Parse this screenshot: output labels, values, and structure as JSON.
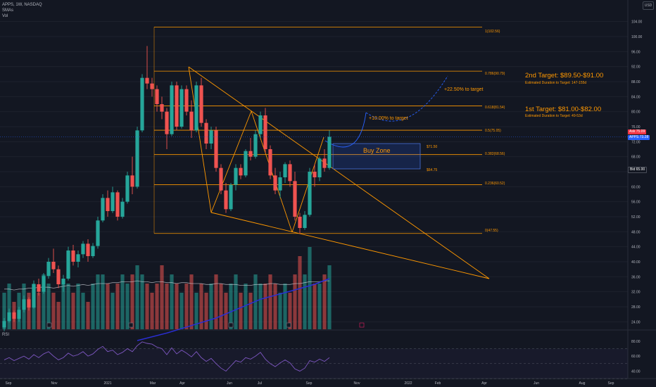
{
  "symbol": {
    "title": "APPS, 1W, NASDAQ",
    "indicators": [
      "SMAs",
      "Vol"
    ],
    "rsi_label": "RSI",
    "currency": "USD"
  },
  "annotations": {
    "target2": "2nd Target: $89.50-$91.00",
    "target2_duration": "Estimated Duration to Target: 147-155d",
    "target1": "1st Target: $81.00-$82.00",
    "target1_duration": "Estimated Duration to Target: 49-53d",
    "pct22": "+22.50% to target",
    "pct10": "+10.00% to target",
    "buy_zone": "Buy Zone",
    "zone_top": "$71.50",
    "zone_bottom": "$64.75"
  },
  "price_tags": [
    {
      "label": "Ask",
      "value": "75.09",
      "color": "#f23645"
    },
    {
      "label": "APPS",
      "value": "73.28",
      "color": "#2962ff"
    },
    {
      "label": "Bid",
      "value": "65.00",
      "color": "#131722"
    }
  ],
  "colors": {
    "up": "#26a69a",
    "down": "#ef5350",
    "fib": "#ff9800",
    "sma": "#2a2ed6",
    "rsi": "#7e57c2",
    "background": "#131722"
  },
  "chart_data": {
    "type": "candlestick",
    "x_axis_labels": [
      "Sep",
      "Nov",
      "2021",
      "Mar",
      "Apr",
      "Jun",
      "Jul",
      "Sep",
      "Nov",
      "2022",
      "Feb",
      "Apr",
      "Jun",
      "Aug",
      "Sep"
    ],
    "y_axis_labels": [
      "24.00",
      "28.00",
      "32.00",
      "36.00",
      "40.00",
      "44.00",
      "48.00",
      "52.00",
      "56.00",
      "60.00",
      "64.00",
      "68.00",
      "72.00",
      "76.00",
      "80.00",
      "84.00",
      "88.00",
      "92.00",
      "96.00",
      "100.00",
      "104.00"
    ],
    "ylim": [
      22,
      106
    ],
    "ohlc": [
      [
        22.5,
        25.0,
        21.5,
        24.2
      ],
      [
        24.2,
        27.5,
        23.8,
        26.5
      ],
      [
        26.5,
        27.0,
        24.0,
        24.8
      ],
      [
        24.8,
        28.0,
        24.0,
        27.2
      ],
      [
        27.2,
        31.0,
        26.5,
        30.0
      ],
      [
        30.0,
        30.5,
        27.0,
        27.8
      ],
      [
        27.8,
        35.0,
        27.5,
        34.0
      ],
      [
        34.0,
        35.5,
        31.0,
        32.0
      ],
      [
        32.0,
        37.0,
        31.5,
        36.2
      ],
      [
        36.2,
        41.0,
        35.5,
        40.0
      ],
      [
        40.0,
        43.5,
        37.0,
        38.0
      ],
      [
        38.0,
        39.0,
        33.0,
        34.0
      ],
      [
        34.0,
        36.5,
        32.0,
        35.5
      ],
      [
        35.5,
        44.0,
        35.0,
        43.0
      ],
      [
        43.0,
        44.5,
        39.0,
        40.0
      ],
      [
        40.0,
        43.0,
        38.5,
        42.0
      ],
      [
        42.0,
        45.5,
        41.0,
        44.8
      ],
      [
        44.8,
        46.0,
        40.0,
        41.5
      ],
      [
        41.5,
        45.0,
        41.0,
        44.2
      ],
      [
        44.2,
        52.0,
        43.5,
        51.0
      ],
      [
        51.0,
        58.0,
        50.5,
        57.0
      ],
      [
        57.0,
        59.0,
        52.0,
        53.5
      ],
      [
        53.5,
        60.0,
        53.0,
        58.5
      ],
      [
        58.5,
        59.0,
        51.0,
        52.0
      ],
      [
        52.0,
        57.0,
        51.5,
        56.0
      ],
      [
        56.0,
        64.0,
        55.5,
        63.0
      ],
      [
        63.0,
        68.0,
        58.0,
        60.0
      ],
      [
        60.0,
        76.0,
        59.5,
        75.0
      ],
      [
        75.0,
        90.0,
        74.5,
        89.0
      ],
      [
        89.0,
        97.5,
        86.0,
        87.5
      ],
      [
        87.5,
        89.0,
        84.0,
        86.0
      ],
      [
        86.0,
        87.0,
        80.0,
        82.0
      ],
      [
        82.0,
        84.0,
        78.0,
        80.0
      ],
      [
        80.0,
        81.0,
        70.0,
        74.0
      ],
      [
        74.0,
        88.0,
        73.5,
        87.0
      ],
      [
        87.0,
        88.0,
        75.0,
        76.0
      ],
      [
        76.0,
        87.0,
        75.5,
        86.0
      ],
      [
        86.0,
        87.0,
        79.0,
        80.0
      ],
      [
        80.0,
        83.0,
        73.0,
        75.0
      ],
      [
        75.0,
        88.0,
        74.5,
        87.0
      ],
      [
        87.0,
        89.0,
        76.0,
        77.0
      ],
      [
        77.0,
        78.0,
        70.0,
        71.5
      ],
      [
        71.5,
        76.0,
        70.0,
        75.0
      ],
      [
        75.0,
        76.0,
        64.0,
        65.0
      ],
      [
        65.0,
        66.0,
        58.0,
        59.0
      ],
      [
        59.0,
        61.0,
        53.0,
        54.0
      ],
      [
        54.0,
        61.0,
        53.5,
        60.5
      ],
      [
        60.5,
        66.0,
        59.0,
        65.0
      ],
      [
        65.0,
        66.0,
        62.0,
        63.0
      ],
      [
        63.0,
        70.0,
        62.5,
        69.5
      ],
      [
        69.5,
        73.0,
        67.0,
        68.0
      ],
      [
        68.0,
        75.0,
        67.5,
        74.0
      ],
      [
        74.0,
        80.0,
        73.0,
        79.0
      ],
      [
        79.0,
        81.0,
        69.0,
        70.0
      ],
      [
        70.0,
        71.0,
        62.0,
        63.0
      ],
      [
        63.0,
        65.0,
        58.0,
        59.0
      ],
      [
        59.0,
        64.0,
        57.0,
        62.5
      ],
      [
        62.5,
        66.5,
        61.0,
        66.0
      ],
      [
        66.0,
        67.0,
        60.0,
        61.5
      ],
      [
        61.5,
        64.0,
        51.0,
        52.0
      ],
      [
        52.0,
        53.0,
        47.5,
        49.0
      ],
      [
        49.0,
        53.5,
        48.5,
        52.5
      ],
      [
        52.5,
        65.0,
        52.0,
        64.0
      ],
      [
        64.0,
        66.0,
        60.0,
        62.5
      ],
      [
        62.5,
        68.0,
        61.5,
        67.5
      ],
      [
        67.5,
        70.0,
        64.0,
        65.0
      ],
      [
        65.0,
        75.0,
        64.5,
        73.3
      ]
    ],
    "volume": [
      4,
      5,
      3,
      4,
      5,
      4,
      5,
      4,
      6,
      5,
      4,
      3,
      5,
      5,
      4,
      5,
      4,
      3,
      5,
      6,
      6,
      5,
      4,
      5,
      6,
      5,
      6,
      7,
      6,
      5,
      4,
      5,
      7,
      5,
      6,
      5,
      4,
      5,
      6,
      4,
      5,
      4,
      5,
      6,
      5,
      4,
      5,
      6,
      4,
      5,
      4,
      6,
      5,
      5,
      6,
      5,
      4,
      5,
      4,
      6,
      8,
      6,
      9,
      5,
      5,
      6,
      7
    ],
    "sma_volume": [
      4.4,
      4.4,
      4.3,
      4.4,
      4.4,
      4.5,
      4.5,
      4.6,
      4.6,
      4.6,
      4.5,
      4.6,
      4.7,
      4.8,
      4.7,
      4.8,
      4.9,
      4.8,
      4.9,
      5.0,
      5.0,
      5.0,
      5.1,
      5.1,
      5.2,
      5.2,
      5.2,
      5.3,
      5.2,
      5.2,
      5.1,
      5.2,
      5.2,
      5.1,
      5.1,
      5.0,
      5.1,
      5.1,
      5.0,
      5.0,
      5.0,
      4.9,
      4.9,
      5.0,
      5.0,
      4.9,
      4.9,
      4.9,
      4.8,
      4.8,
      4.8,
      4.9,
      4.9,
      4.9,
      5.0,
      5.0,
      4.9,
      4.9,
      4.9,
      5.0,
      5.0,
      5.1,
      5.2,
      5.2,
      5.2,
      5.3,
      5.3
    ],
    "sma_price": [
      [
        27,
        19
      ],
      [
        33,
        21
      ],
      [
        43,
        25
      ],
      [
        52,
        30
      ],
      [
        59,
        32.5
      ],
      [
        63,
        34
      ],
      [
        66,
        35.5
      ]
    ],
    "rsi": [
      55,
      58,
      54,
      57,
      60,
      56,
      62,
      58,
      63,
      66,
      60,
      55,
      58,
      64,
      60,
      62,
      66,
      60,
      63,
      69,
      73,
      66,
      68,
      62,
      65,
      70,
      66,
      74,
      79,
      77,
      76,
      72,
      70,
      62,
      71,
      63,
      68,
      64,
      59,
      66,
      58,
      53,
      57,
      50,
      44,
      40,
      47,
      54,
      52,
      58,
      56,
      60,
      65,
      56,
      50,
      46,
      51,
      55,
      51,
      43,
      40,
      44,
      54,
      52,
      56,
      53,
      58
    ],
    "rsi_axis_labels": [
      "80.00",
      "60.00",
      "40.00"
    ],
    "rsi_ylim": [
      32,
      92
    ],
    "fib_levels": [
      {
        "label": "1(102.56)",
        "value": 102.56
      },
      {
        "label": "0.786(90.79)",
        "value": 90.79
      },
      {
        "label": "0.618(81.54)",
        "value": 81.54
      },
      {
        "label": "0.5(75.05)",
        "value": 75.05
      },
      {
        "label": "0.382(68.56)",
        "value": 68.56
      },
      {
        "label": "0.236(60.52)",
        "value": 60.52
      },
      {
        "label": "0(47.55)",
        "value": 47.55
      }
    ],
    "buy_zone": [
      64.75,
      71.5
    ]
  }
}
